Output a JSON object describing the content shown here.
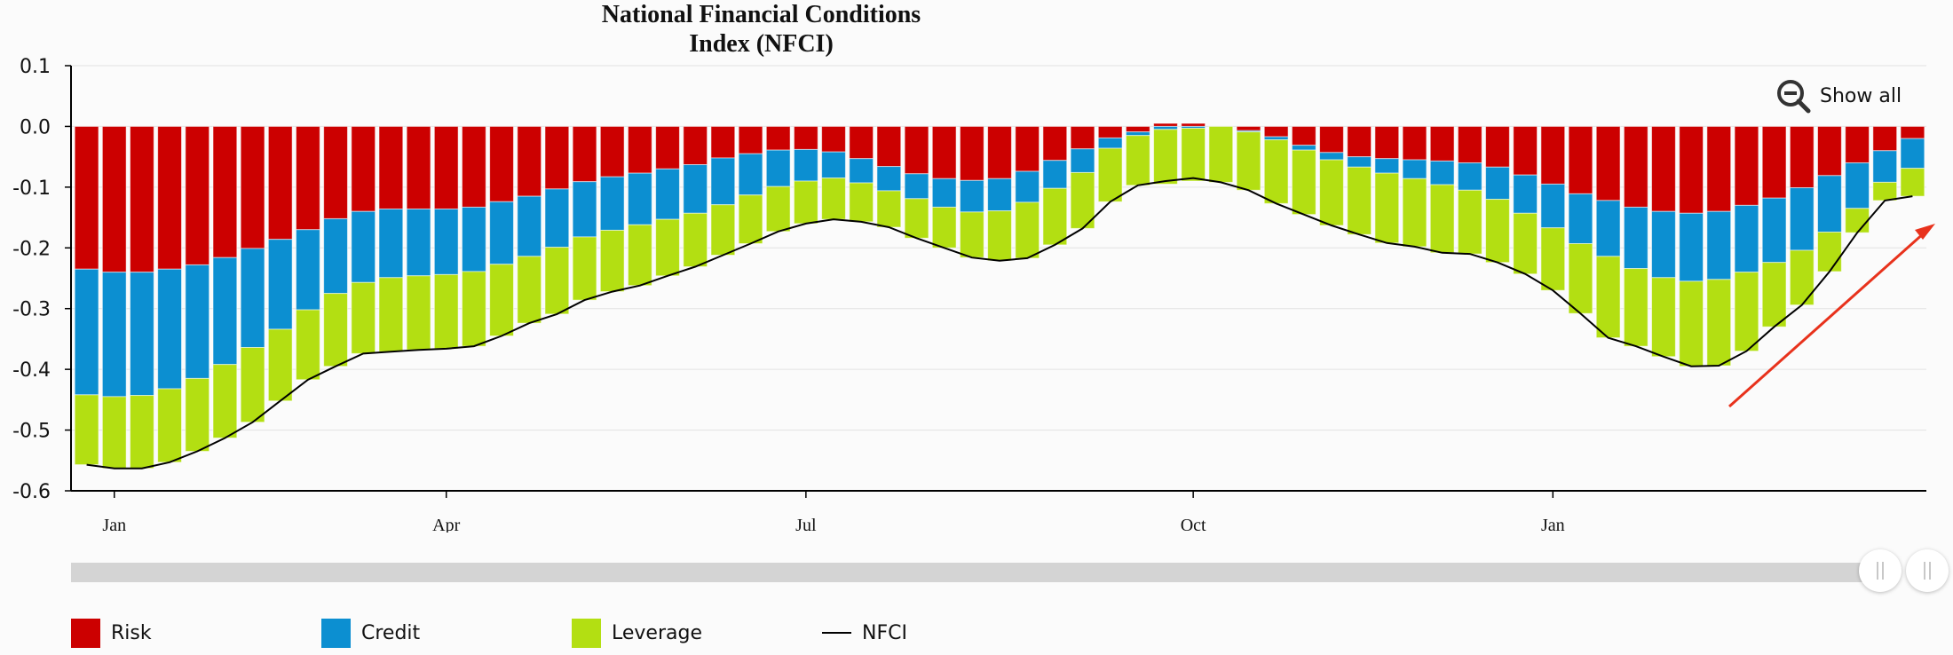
{
  "header": {
    "title_line1": "National Financial Conditions",
    "title_line2": "Index (NFCI)"
  },
  "controls": {
    "show_all_label": "Show all",
    "show_all_icon": "zoom-out-icon"
  },
  "legend": [
    {
      "label": "Risk",
      "color": "#cc0000"
    },
    {
      "label": "Credit",
      "color": "#0c8fd1"
    },
    {
      "label": "Leverage",
      "color": "#b3df12"
    },
    {
      "label": "NFCI",
      "color": "#000000"
    }
  ],
  "chart_data": {
    "type": "bar",
    "stacked": true,
    "title": "National Financial Conditions Index (NFCI)",
    "xlabel": "",
    "ylabel": "",
    "ylim": [
      -0.6,
      0.1
    ],
    "yticks": [
      "0.1",
      "0.0",
      "-0.1",
      "-0.2",
      "-0.3",
      "-0.4",
      "-0.5",
      "-0.6"
    ],
    "xtick_labels": [
      {
        "label": "Jan",
        "index": 1
      },
      {
        "label": "Apr",
        "index": 13
      },
      {
        "label": "Jul",
        "index": 26
      },
      {
        "label": "Oct",
        "index": 40
      },
      {
        "label": "Jan",
        "index": 53
      }
    ],
    "series": [
      {
        "name": "Risk",
        "color": "#cc0000",
        "values": [
          -0.235,
          -0.24,
          -0.24,
          -0.235,
          -0.228,
          -0.216,
          -0.201,
          -0.186,
          -0.17,
          -0.152,
          -0.14,
          -0.136,
          -0.136,
          -0.136,
          -0.133,
          -0.124,
          -0.115,
          -0.103,
          -0.091,
          -0.083,
          -0.077,
          -0.07,
          -0.063,
          -0.052,
          -0.045,
          -0.039,
          -0.038,
          -0.042,
          -0.053,
          -0.066,
          -0.078,
          -0.086,
          -0.089,
          -0.086,
          -0.074,
          -0.056,
          -0.037,
          -0.019,
          -0.009,
          0.005,
          0.005,
          0.0,
          -0.007,
          -0.017,
          -0.031,
          -0.043,
          -0.05,
          -0.053,
          -0.055,
          -0.057,
          -0.06,
          -0.067,
          -0.08,
          -0.095,
          -0.111,
          -0.122,
          -0.133,
          -0.14,
          -0.143,
          -0.14,
          -0.13,
          -0.118,
          -0.101,
          -0.081,
          -0.06,
          -0.04,
          -0.02
        ]
      },
      {
        "name": "Credit",
        "color": "#0c8fd1",
        "values": [
          -0.207,
          -0.205,
          -0.203,
          -0.197,
          -0.187,
          -0.176,
          -0.163,
          -0.148,
          -0.132,
          -0.123,
          -0.117,
          -0.113,
          -0.11,
          -0.108,
          -0.106,
          -0.103,
          -0.099,
          -0.096,
          -0.091,
          -0.088,
          -0.085,
          -0.083,
          -0.08,
          -0.077,
          -0.068,
          -0.06,
          -0.052,
          -0.043,
          -0.04,
          -0.04,
          -0.041,
          -0.047,
          -0.052,
          -0.053,
          -0.051,
          -0.046,
          -0.039,
          -0.017,
          -0.006,
          -0.005,
          -0.003,
          0.0,
          -0.002,
          -0.005,
          -0.008,
          -0.012,
          -0.017,
          -0.024,
          -0.031,
          -0.039,
          -0.045,
          -0.053,
          -0.063,
          -0.072,
          -0.082,
          -0.092,
          -0.101,
          -0.109,
          -0.112,
          -0.112,
          -0.11,
          -0.106,
          -0.103,
          -0.093,
          -0.075,
          -0.052,
          -0.049
        ]
      },
      {
        "name": "Leverage",
        "color": "#b3df12",
        "values": [
          -0.115,
          -0.118,
          -0.12,
          -0.121,
          -0.12,
          -0.121,
          -0.123,
          -0.118,
          -0.115,
          -0.12,
          -0.117,
          -0.122,
          -0.122,
          -0.122,
          -0.123,
          -0.118,
          -0.11,
          -0.11,
          -0.104,
          -0.101,
          -0.1,
          -0.093,
          -0.088,
          -0.083,
          -0.08,
          -0.074,
          -0.07,
          -0.068,
          -0.064,
          -0.06,
          -0.065,
          -0.067,
          -0.075,
          -0.082,
          -0.092,
          -0.093,
          -0.092,
          -0.088,
          -0.082,
          -0.09,
          -0.087,
          -0.092,
          -0.096,
          -0.105,
          -0.106,
          -0.108,
          -0.111,
          -0.115,
          -0.112,
          -0.112,
          -0.105,
          -0.104,
          -0.1,
          -0.103,
          -0.115,
          -0.134,
          -0.128,
          -0.13,
          -0.14,
          -0.142,
          -0.13,
          -0.106,
          -0.09,
          -0.065,
          -0.04,
          -0.03,
          -0.046
        ]
      },
      {
        "name": "NFCI",
        "color": "#000000",
        "type": "line",
        "values": [
          -0.557,
          -0.563,
          -0.563,
          -0.553,
          -0.535,
          -0.513,
          -0.487,
          -0.452,
          -0.417,
          -0.395,
          -0.374,
          -0.371,
          -0.368,
          -0.366,
          -0.362,
          -0.345,
          -0.324,
          -0.309,
          -0.286,
          -0.272,
          -0.262,
          -0.246,
          -0.231,
          -0.212,
          -0.193,
          -0.173,
          -0.16,
          -0.153,
          -0.157,
          -0.166,
          -0.184,
          -0.2,
          -0.216,
          -0.221,
          -0.217,
          -0.195,
          -0.168,
          -0.124,
          -0.097,
          -0.09,
          -0.085,
          -0.092,
          -0.105,
          -0.127,
          -0.145,
          -0.163,
          -0.178,
          -0.192,
          -0.198,
          -0.208,
          -0.21,
          -0.224,
          -0.243,
          -0.27,
          -0.308,
          -0.348,
          -0.362,
          -0.379,
          -0.395,
          -0.394,
          -0.37,
          -0.33,
          -0.294,
          -0.239,
          -0.175,
          -0.122,
          -0.115
        ]
      }
    ],
    "annotations": [
      {
        "type": "arrow",
        "description": "red arrow pointing up-right",
        "color": "#e8321c"
      }
    ]
  }
}
